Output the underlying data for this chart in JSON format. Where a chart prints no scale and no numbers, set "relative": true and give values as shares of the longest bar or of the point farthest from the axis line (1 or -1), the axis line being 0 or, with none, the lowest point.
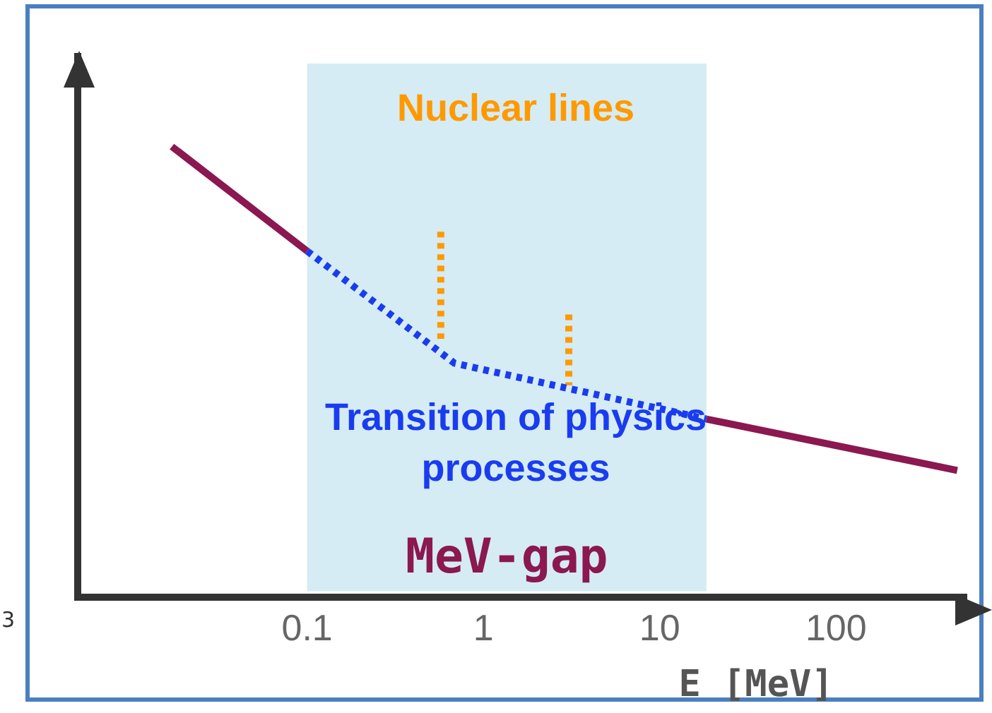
{
  "chart_data": {
    "type": "line",
    "relative": true,
    "log": "x",
    "xlabel": "E [MeV]",
    "xlim": [
      0.005,
      550
    ],
    "xticks": [
      0.1,
      1,
      10,
      100
    ],
    "grid": false,
    "legend": false,
    "tick_labels": "x",
    "marker": "none",
    "series": [
      {
        "color": "#8b1850",
        "line_style": "solid",
        "x": [
          0.0171,
          0.1
        ],
        "values": [
          1,
          0.768
        ]
      },
      {
        "color": "#1a3cf0",
        "line_style": "dotted",
        "x": [
          0.1,
          0.685,
          18.4
        ],
        "values": [
          0.768,
          0.519,
          0.395
        ]
      },
      {
        "color": "#8b1850",
        "line_style": "solid",
        "x": [
          18.4,
          487
        ],
        "values": [
          0.395,
          0.281
        ]
      },
      {
        "color": "#ff9900",
        "line_style": "dotted",
        "x": [
          0.573,
          0.573
        ],
        "values": [
          0.811,
          0.573
        ]
      },
      {
        "color": "#ff9900",
        "line_style": "dotted",
        "x": [
          3.05,
          3.05
        ],
        "values": [
          0.627,
          0.47
        ]
      }
    ],
    "bands": [
      {
        "axis": "x",
        "from": 0.1,
        "to": 18.4,
        "label": "MeV-gap",
        "color": "#d5ecf4"
      }
    ],
    "annotations": [
      "Nuclear lines",
      "Transition of physics processes",
      "3"
    ]
  }
}
